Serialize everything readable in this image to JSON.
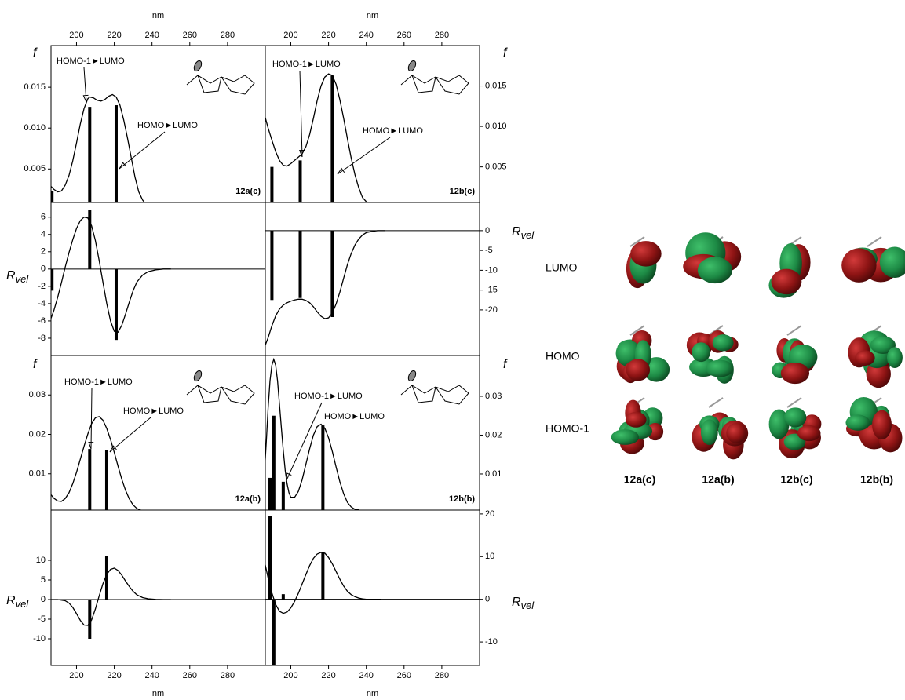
{
  "chart_data": [
    {
      "type": "stick",
      "title": "12a(c)",
      "xlabel": "nm",
      "ylabel": "f",
      "xlim": [
        186.5,
        300
      ],
      "xticks": [
        200,
        220,
        240,
        260,
        280
      ],
      "ylim": [
        0.0009,
        0.0201
      ],
      "yticks": [
        0.005,
        {
          "value": 0.01,
          "label": "0.010"
        },
        0.015
      ],
      "curve": {
        "x": [
          186,
          188,
          190,
          192,
          194,
          196,
          198,
          200,
          202,
          204,
          206,
          207,
          209,
          211,
          213,
          215,
          217,
          219,
          221,
          223,
          225,
          227,
          229,
          231,
          233,
          235,
          236
        ],
        "values": [
          0.003,
          0.0025,
          0.0022,
          0.0023,
          0.003,
          0.0042,
          0.006,
          0.0082,
          0.0105,
          0.0124,
          0.0136,
          0.0138,
          0.0137,
          0.0134,
          0.0133,
          0.0135,
          0.0139,
          0.0141,
          0.0138,
          0.0128,
          0.011,
          0.0088,
          0.0064,
          0.004,
          0.0022,
          0.0012,
          0.0009
        ]
      },
      "sticks": {
        "x": [
          187,
          207,
          221
        ],
        "values": [
          0.0023,
          0.0126,
          0.0128
        ]
      },
      "annotations": [
        "HOMO-1►LUMO",
        "HOMO►LUMO"
      ]
    },
    {
      "type": "stick",
      "ylabel": "R",
      "ylabel_sub": "vel",
      "xlim": [
        186.5,
        300
      ],
      "ylim": [
        -10,
        7.7
      ],
      "yticks": [
        6,
        4,
        2,
        0,
        -2,
        -4,
        -6,
        -8
      ],
      "curve": {
        "x": [
          186,
          188,
          190,
          192,
          194,
          196,
          198,
          200,
          202,
          204,
          206,
          208,
          210,
          212,
          214,
          216,
          218,
          220,
          222,
          224,
          226,
          228,
          230,
          232,
          235,
          238,
          242,
          246,
          250
        ],
        "values": [
          -6.0,
          -4.8,
          -3.3,
          -1.6,
          0.2,
          1.9,
          3.4,
          4.7,
          5.6,
          6.0,
          5.9,
          5.0,
          3.3,
          1.0,
          -1.5,
          -4.0,
          -6.0,
          -7.2,
          -7.3,
          -6.5,
          -5.2,
          -3.8,
          -2.5,
          -1.5,
          -0.7,
          -0.3,
          -0.1,
          0,
          0
        ]
      },
      "sticks": {
        "x": [
          187,
          207,
          221
        ],
        "values": [
          -2.5,
          6.8,
          -8.2
        ]
      }
    },
    {
      "type": "stick",
      "title": "12b(c)",
      "xlabel": "nm",
      "ylabel": "f",
      "xlim": [
        186.5,
        300
      ],
      "xticks": [
        200,
        220,
        240,
        260,
        280
      ],
      "ylim": [
        0.0006,
        0.02
      ],
      "yticks": [
        0.005,
        {
          "value": 0.01,
          "label": "0.010"
        },
        0.015
      ],
      "curve": {
        "x": [
          186,
          188,
          190,
          192,
          194,
          196,
          198,
          200,
          202,
          204,
          206,
          208,
          210,
          212,
          214,
          216,
          218,
          220,
          222,
          224,
          226,
          228,
          230,
          232,
          234,
          236,
          238,
          240
        ],
        "values": [
          0.0115,
          0.0098,
          0.0083,
          0.0069,
          0.0058,
          0.0052,
          0.0051,
          0.0054,
          0.0058,
          0.0062,
          0.0066,
          0.0075,
          0.009,
          0.011,
          0.0132,
          0.015,
          0.0161,
          0.0165,
          0.0163,
          0.0152,
          0.0133,
          0.011,
          0.0085,
          0.0061,
          0.004,
          0.0024,
          0.0012,
          0.0007
        ]
      },
      "sticks": {
        "x": [
          190,
          205,
          222
        ],
        "values": [
          0.005,
          0.0058,
          0.0163
        ]
      },
      "annotations": [
        "HOMO-1►LUMO",
        "HOMO►LUMO"
      ]
    },
    {
      "type": "stick",
      "ylabel": "R",
      "ylabel_sub": "vel",
      "xlim": [
        186.5,
        300
      ],
      "ylim": [
        -31.5,
        7.1
      ],
      "yticks": [
        0,
        -5,
        -10,
        -15,
        -20
      ],
      "curve": {
        "x": [
          186,
          188,
          190,
          192,
          194,
          196,
          198,
          200,
          202,
          204,
          206,
          208,
          210,
          212,
          214,
          216,
          218,
          220,
          222,
          224,
          226,
          228,
          230,
          232,
          234,
          236,
          238,
          240,
          243,
          246,
          250
        ],
        "values": [
          -29.5,
          -27,
          -24,
          -21.5,
          -19.8,
          -18.8,
          -18.2,
          -17.8,
          -17.5,
          -17.3,
          -17.3,
          -17.6,
          -18.2,
          -19.2,
          -20.5,
          -21.6,
          -22.2,
          -22.0,
          -20.8,
          -18.5,
          -15.5,
          -12.0,
          -8.6,
          -5.8,
          -3.6,
          -2.1,
          -1.1,
          -0.5,
          -0.2,
          0,
          0
        ]
      },
      "sticks": {
        "x": [
          190,
          205,
          222
        ],
        "values": [
          -17.5,
          -17,
          -21.8
        ]
      }
    },
    {
      "type": "stick",
      "title": "12a(b)",
      "ylabel": "f",
      "xlim": [
        186.5,
        300
      ],
      "ylim": [
        0.0008,
        0.04
      ],
      "yticks": [
        0.01,
        0.02,
        0.03
      ],
      "curve": {
        "x": [
          186,
          188,
          190,
          192,
          194,
          196,
          198,
          200,
          202,
          204,
          206,
          208,
          210,
          212,
          214,
          216,
          218,
          220,
          222,
          224,
          226,
          228,
          230,
          232,
          234
        ],
        "values": [
          0.005,
          0.0038,
          0.0031,
          0.003,
          0.0037,
          0.0052,
          0.0075,
          0.0104,
          0.0137,
          0.017,
          0.0201,
          0.0227,
          0.0242,
          0.0245,
          0.0236,
          0.0215,
          0.0187,
          0.0154,
          0.0119,
          0.0086,
          0.0058,
          0.0036,
          0.0021,
          0.0012,
          0.0008
        ]
      },
      "sticks": {
        "x": [
          207,
          216
        ],
        "values": [
          0.0163,
          0.016
        ]
      },
      "annotations": [
        "HOMO-1►LUMO",
        "HOMO►LUMO"
      ]
    },
    {
      "type": "stick",
      "xlabel": "nm",
      "ylabel": "R",
      "ylabel_sub": "vel",
      "xlim": [
        186.5,
        300
      ],
      "xticks": [
        200,
        220,
        240,
        260,
        280
      ],
      "ylim": [
        -16.8,
        22.8
      ],
      "yticks": [
        10,
        5,
        0,
        -5,
        -10
      ],
      "curve": {
        "x": [
          186,
          190,
          194,
          196,
          198,
          200,
          202,
          204,
          206,
          208,
          210,
          212,
          214,
          216,
          218,
          220,
          222,
          224,
          226,
          228,
          230,
          232,
          235,
          238,
          242,
          246,
          250
        ],
        "values": [
          0,
          0,
          -0.3,
          -0.9,
          -2.0,
          -3.6,
          -5.3,
          -6.5,
          -6.6,
          -5.2,
          -2.4,
          0.9,
          4.0,
          6.4,
          7.7,
          8.0,
          7.4,
          6.2,
          4.7,
          3.3,
          2.1,
          1.2,
          0.5,
          0.2,
          0.05,
          0,
          0
        ]
      },
      "sticks": {
        "x": [
          207,
          216
        ],
        "values": [
          -10,
          11.2
        ]
      }
    },
    {
      "type": "stick",
      "title": "12b(b)",
      "ylabel": "f",
      "xlim": [
        186.5,
        300
      ],
      "ylim": [
        0.0007,
        0.0405
      ],
      "yticks": [
        0.01,
        0.02,
        0.03
      ],
      "curve": {
        "x": [
          186,
          187,
          188,
          189,
          190,
          191,
          192,
          193,
          194,
          195,
          196,
          197,
          198,
          199,
          200,
          202,
          204,
          206,
          208,
          210,
          212,
          214,
          216,
          218,
          220,
          222,
          224,
          226,
          228,
          230,
          232,
          234,
          236
        ],
        "values": [
          0.01,
          0.018,
          0.027,
          0.034,
          0.038,
          0.0395,
          0.038,
          0.034,
          0.028,
          0.022,
          0.016,
          0.011,
          0.0075,
          0.0052,
          0.004,
          0.004,
          0.0055,
          0.0085,
          0.0125,
          0.0165,
          0.02,
          0.0222,
          0.0228,
          0.0218,
          0.0193,
          0.0158,
          0.0118,
          0.008,
          0.0049,
          0.0027,
          0.0015,
          0.0009,
          0.0008
        ]
      },
      "sticks": {
        "x": [
          189,
          191,
          196,
          217
        ],
        "values": [
          0.009,
          0.025,
          0.008,
          0.0225
        ]
      },
      "annotations": [
        "HOMO-1►LUMO",
        "HOMO►LUMO"
      ]
    },
    {
      "type": "stick",
      "xlabel": "nm",
      "ylabel": "R",
      "ylabel_sub": "vel",
      "xlim": [
        186.5,
        300
      ],
      "xticks": [
        200,
        220,
        240,
        260,
        280
      ],
      "ylim": [
        -15.5,
        20.9
      ],
      "yticks": [
        20,
        10,
        0,
        -10
      ],
      "curve": {
        "x": [
          186,
          188,
          190,
          192,
          194,
          196,
          198,
          200,
          202,
          204,
          206,
          208,
          210,
          212,
          214,
          216,
          218,
          220,
          222,
          224,
          226,
          228,
          230,
          232,
          234,
          236,
          238,
          240,
          244,
          248
        ],
        "values": [
          9,
          5,
          1.5,
          -1.2,
          -2.8,
          -3.3,
          -3.0,
          -2.0,
          -0.5,
          1.4,
          3.6,
          5.8,
          7.9,
          9.6,
          10.6,
          11.0,
          10.8,
          9.8,
          8.3,
          6.5,
          4.7,
          3.1,
          1.9,
          1.1,
          0.6,
          0.3,
          0.1,
          0,
          0,
          0
        ]
      },
      "sticks": {
        "x": [
          189,
          191,
          196,
          217
        ],
        "values": [
          19.6,
          -15.4,
          1.2,
          10.9
        ]
      }
    }
  ],
  "orbitals": {
    "rows": [
      "LUMO",
      "HOMO",
      "HOMO-1"
    ],
    "columns": [
      "12a(c)",
      "12a(b)",
      "12b(c)",
      "12b(b)"
    ]
  }
}
